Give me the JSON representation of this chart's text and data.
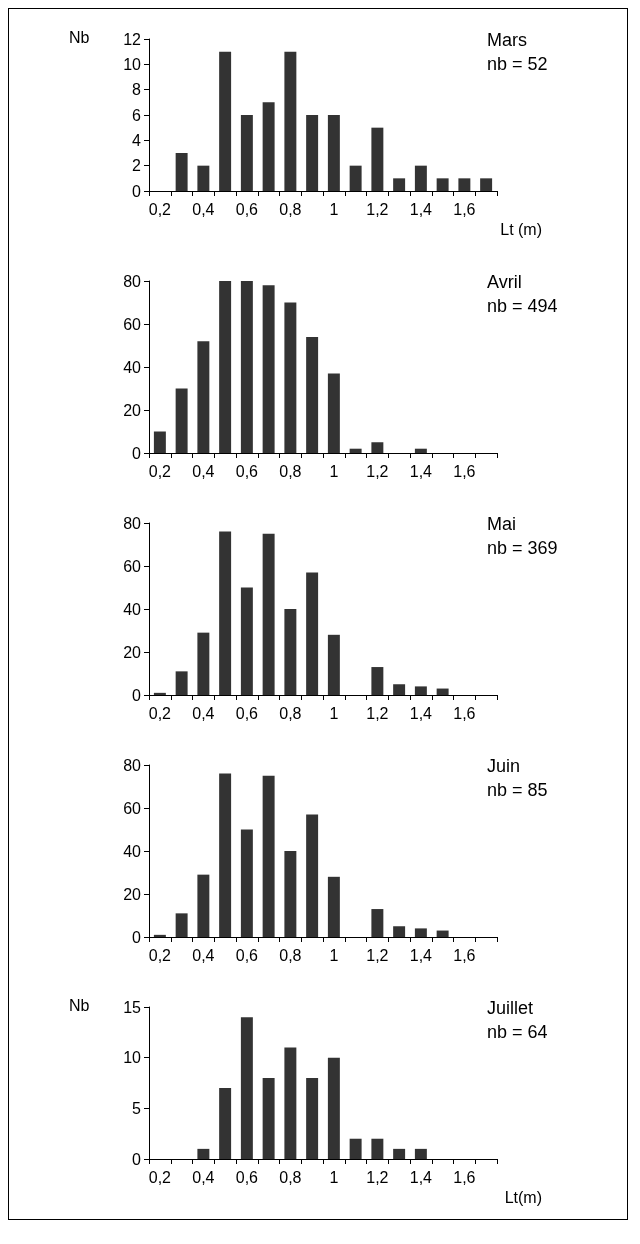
{
  "chart_data": [
    {
      "type": "bar",
      "ylabel": "Nb",
      "xlabel": "Lt (m)",
      "annotations": [
        "Mars",
        "nb = 52"
      ],
      "categories": [
        "0,2",
        null,
        "0,4",
        null,
        "0,6",
        null,
        "0,8",
        null,
        "1",
        null,
        "1,2",
        null,
        "1,4",
        null,
        "1,6",
        null
      ],
      "values": [
        0,
        3,
        2,
        11,
        6,
        7,
        11,
        6,
        6,
        2,
        5,
        1,
        2,
        1,
        1,
        1
      ],
      "color": "#333333",
      "ylim": [
        0,
        12
      ],
      "yticks": [
        0,
        2,
        4,
        6,
        8,
        10,
        12
      ]
    },
    {
      "type": "bar",
      "annotations": [
        "Avril",
        "nb = 494"
      ],
      "categories": [
        "0,2",
        null,
        "0,4",
        null,
        "0,6",
        null,
        "0,8",
        null,
        "1",
        null,
        "1,2",
        null,
        "1,4",
        null,
        "1,6",
        null
      ],
      "values": [
        10,
        30,
        52,
        80,
        80,
        78,
        70,
        54,
        37,
        2,
        5,
        0,
        2,
        0,
        0,
        0
      ],
      "color": "#333333",
      "ylim": [
        0,
        80
      ],
      "yticks": [
        0,
        20,
        40,
        60,
        80
      ]
    },
    {
      "type": "bar",
      "annotations": [
        "Mai",
        "nb = 369"
      ],
      "categories": [
        "0,2",
        null,
        "0,4",
        null,
        "0,6",
        null,
        "0,8",
        null,
        "1",
        null,
        "1,2",
        null,
        "1,4",
        null,
        "1,6",
        null
      ],
      "values": [
        1,
        11,
        29,
        76,
        50,
        75,
        40,
        57,
        28,
        0,
        13,
        5,
        4,
        3,
        0,
        0
      ],
      "color": "#333333",
      "ylim": [
        0,
        80
      ],
      "yticks": [
        0,
        20,
        40,
        60,
        80
      ]
    },
    {
      "type": "bar",
      "annotations": [
        "Juin",
        "nb = 85"
      ],
      "categories": [
        "0,2",
        null,
        "0,4",
        null,
        "0,6",
        null,
        "0,8",
        null,
        "1",
        null,
        "1,2",
        null,
        "1,4",
        null,
        "1,6",
        null
      ],
      "values": [
        1,
        11,
        29,
        76,
        50,
        75,
        40,
        57,
        28,
        0,
        13,
        5,
        4,
        3,
        0,
        0
      ],
      "color": "#333333",
      "ylim": [
        0,
        80
      ],
      "yticks": [
        0,
        20,
        40,
        60,
        80
      ]
    },
    {
      "type": "bar",
      "ylabel": "Nb",
      "xlabel": "Lt(m)",
      "annotations": [
        "Juillet",
        "nb = 64"
      ],
      "categories": [
        "0,2",
        null,
        "0,4",
        null,
        "0,6",
        null,
        "0,8",
        null,
        "1",
        null,
        "1,2",
        null,
        "1,4",
        null,
        "1,6",
        null
      ],
      "values": [
        0,
        0,
        1,
        7,
        14,
        8,
        11,
        8,
        10,
        2,
        2,
        1,
        1,
        0,
        0,
        0
      ],
      "color": "#333333",
      "ylim": [
        0,
        15
      ],
      "yticks": [
        0,
        5,
        10,
        15
      ]
    }
  ]
}
